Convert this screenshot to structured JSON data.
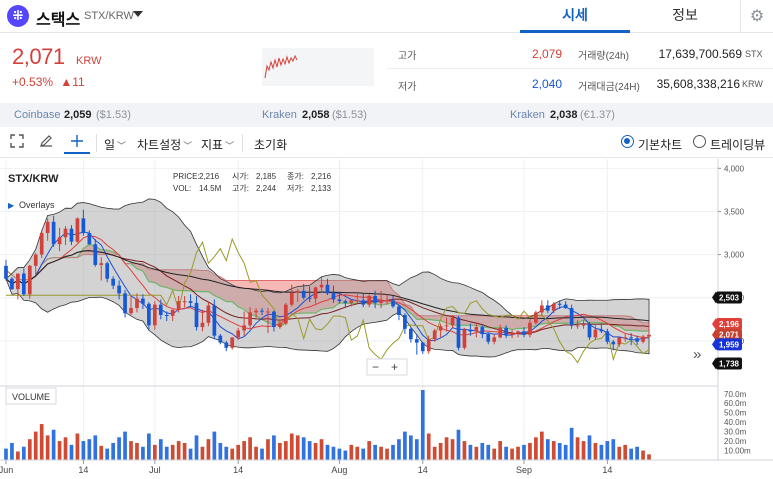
{
  "header": {
    "coin_logo": "⁜",
    "coin_name": "스택스",
    "pair": "STX/KRW",
    "dropdown_icon": "caret-down-icon",
    "tabs": [
      "시세",
      "정보"
    ],
    "settings_icon": "gear-icon"
  },
  "price": {
    "current": "2,071",
    "unit": "KRW",
    "change_pct": "+0.53%",
    "change_abs": "▲11"
  },
  "stats": {
    "high_label": "고가",
    "high_value": "2,079",
    "low_label": "저가",
    "low_value": "2,040",
    "volume_label": "거래량(24h)",
    "volume_value": "17,639,700.569",
    "volume_unit": "STX",
    "amount_label": "거래대금(24H)",
    "amount_value": "35,608,338,216",
    "amount_unit": "KRW"
  },
  "exchanges": [
    {
      "name": "Coinbase",
      "price": "2,059",
      "sub": "($1.53)"
    },
    {
      "name": "Kraken",
      "price": "2,058",
      "sub": "($1.53)"
    },
    {
      "name": "Kraken",
      "price": "2,038",
      "sub": "(€1.37)"
    }
  ],
  "toolbar": {
    "expand_icon": "expand-icon",
    "draw_icon": "pencil-icon",
    "crosshair_icon": "crosshair-icon",
    "period": "일",
    "chart_settings": "차트설정",
    "indicators": "지표",
    "reset": "초기화",
    "basic_chart": "기본차트",
    "tradingview": "트레이딩뷰",
    "dropdown_caret": "﹀"
  },
  "colors": {
    "up": "#d2413a",
    "down": "#1559d6",
    "accent": "#1261c4",
    "cloud_bear": "#f4a2a0",
    "bollinger_fill": "#9e9e9e"
  },
  "legend": {
    "symbol": "STX/KRW",
    "overlays": "Overlays",
    "price_label": "PRICE:",
    "price_value": "2,216",
    "vol_label": "VOL:",
    "vol_value": "14.5M",
    "open_label": "시가:",
    "open_value": "2,185",
    "high_label": "고가:",
    "high_value": "2,244",
    "close_label": "종가:",
    "close_value": "2,216",
    "low_label": "저가:",
    "low_value": "2,133",
    "volume_title": "VOLUME",
    "zoom_out": "−",
    "zoom_in": "+",
    "scroll_right": "»"
  },
  "chart_data": {
    "type": "candlestick",
    "x_ticks": [
      "Jun",
      "14",
      "Jul",
      "14",
      "Aug",
      "14",
      "Sep",
      "14"
    ],
    "price_axis_ticks": [
      "4,000",
      "3,500",
      "3,000",
      "2,500",
      "2,000"
    ],
    "volume_axis_ticks": [
      "70.0m",
      "60.0m",
      "50.0m",
      "40.0m",
      "30.0m",
      "20.0m",
      "10.00m"
    ],
    "ylim": [
      1500,
      4050
    ],
    "price_badges": [
      {
        "label": "2,503",
        "value": 2503,
        "color": "#111111"
      },
      {
        "label": "2,196",
        "value": 2196,
        "color": "#e0403a"
      },
      {
        "label": "2,071",
        "value": 2071,
        "color": "#c5402e"
      },
      {
        "label": "1,959",
        "value": 1959,
        "color": "#1733d6"
      },
      {
        "label": "1,738",
        "value": 1738,
        "color": "#111111"
      }
    ],
    "candles": {
      "opens": [
        2870,
        2720,
        2600,
        2780,
        2540,
        2870,
        3000,
        3250,
        3380,
        3120,
        3200,
        3300,
        3150,
        3420,
        3250,
        3120,
        2880,
        2900,
        2720,
        2640,
        2550,
        2320,
        2380,
        2490,
        2430,
        2180,
        2420,
        2300,
        2290,
        2360,
        2460,
        2460,
        2440,
        2160,
        2210,
        2410,
        2060,
        1980,
        1920,
        2040,
        2120,
        2180,
        2330,
        2350,
        2340,
        2340,
        2160,
        2200,
        2420,
        2560,
        2580,
        2500,
        2490,
        2620,
        2650,
        2550,
        2480,
        2460,
        2440,
        2470,
        2470,
        2420,
        2520,
        2440,
        2470,
        2470,
        2400,
        2300,
        2140,
        2020,
        1980,
        1880,
        2020,
        2120,
        2170,
        2180,
        2270,
        1920,
        2130,
        2110,
        2160,
        2080,
        1990,
        2040,
        2150,
        2070,
        2090,
        2110,
        2070,
        2210,
        2330,
        2410,
        2350,
        2430,
        2420,
        2380,
        2180,
        2180,
        2190,
        2040,
        2130,
        2110,
        1990,
        1960,
        2040,
        2040,
        2030,
        1990,
        2050
      ],
      "highs": [
        2940,
        2740,
        2620,
        2840,
        2880,
        3020,
        3290,
        3420,
        3450,
        3310,
        3330,
        3340,
        3430,
        3520,
        3280,
        3180,
        2970,
        2920,
        2750,
        2700,
        2590,
        2520,
        2550,
        2540,
        2450,
        2460,
        2480,
        2340,
        2360,
        2520,
        2520,
        2540,
        2520,
        2360,
        2450,
        2480,
        2080,
        2000,
        1980,
        2150,
        2340,
        2390,
        2380,
        2380,
        2380,
        2350,
        2250,
        2440,
        2650,
        2600,
        2660,
        2630,
        2630,
        2740,
        2720,
        2640,
        2570,
        2480,
        2480,
        2560,
        2550,
        2540,
        2580,
        2580,
        2540,
        2520,
        2410,
        2320,
        2160,
        2080,
        1990,
        2060,
        2140,
        2200,
        2270,
        2300,
        2290,
        2150,
        2200,
        2200,
        2180,
        2090,
        2070,
        2190,
        2180,
        2130,
        2120,
        2160,
        2260,
        2350,
        2470,
        2470,
        2450,
        2470,
        2460,
        2420,
        2240,
        2240,
        2220,
        2180,
        2200,
        2140,
        2010,
        2050,
        2080,
        2090,
        2060,
        2070,
        2210
      ],
      "lows": [
        2700,
        2590,
        2480,
        2520,
        2490,
        2760,
        2960,
        3160,
        3090,
        3040,
        3110,
        3110,
        3140,
        3220,
        3110,
        2860,
        2700,
        2680,
        2600,
        2480,
        2270,
        2300,
        2330,
        2370,
        2130,
        2130,
        2250,
        2230,
        2230,
        2330,
        2390,
        2390,
        2120,
        2110,
        2170,
        2020,
        1960,
        1880,
        1900,
        2010,
        2060,
        2150,
        2260,
        2300,
        2090,
        2110,
        2140,
        2180,
        2400,
        2450,
        2480,
        2450,
        2430,
        2580,
        2530,
        2440,
        2430,
        2380,
        2400,
        2430,
        2390,
        2390,
        2380,
        2380,
        2420,
        2380,
        2240,
        2080,
        1980,
        1840,
        1850,
        1850,
        1990,
        2040,
        2110,
        2150,
        1890,
        1900,
        2060,
        2040,
        2030,
        1960,
        1960,
        2030,
        2030,
        2030,
        2040,
        2040,
        2040,
        2190,
        2290,
        2320,
        2320,
        2370,
        2370,
        2140,
        2140,
        2140,
        2010,
        2010,
        2090,
        1960,
        1890,
        1930,
        1990,
        1950,
        1950,
        1970,
        2040
      ],
      "closes": [
        2720,
        2600,
        2780,
        2540,
        2870,
        3000,
        3250,
        3380,
        3120,
        3200,
        3300,
        3150,
        3420,
        3250,
        3120,
        2880,
        2900,
        2720,
        2640,
        2550,
        2320,
        2380,
        2490,
        2430,
        2180,
        2420,
        2300,
        2290,
        2360,
        2460,
        2460,
        2440,
        2160,
        2210,
        2410,
        2060,
        1980,
        1920,
        2040,
        2120,
        2180,
        2330,
        2350,
        2340,
        2340,
        2160,
        2200,
        2420,
        2560,
        2580,
        2500,
        2490,
        2620,
        2650,
        2550,
        2480,
        2460,
        2440,
        2470,
        2470,
        2420,
        2520,
        2440,
        2470,
        2470,
        2400,
        2300,
        2140,
        2020,
        1980,
        1880,
        2020,
        2120,
        2170,
        2180,
        2270,
        1920,
        2130,
        2110,
        2160,
        2080,
        1990,
        2040,
        2150,
        2070,
        2090,
        2110,
        2070,
        2210,
        2330,
        2410,
        2350,
        2430,
        2420,
        2380,
        2180,
        2180,
        2190,
        2040,
        2130,
        2110,
        1990,
        1960,
        2040,
        2040,
        2030,
        1990,
        2050,
        2071
      ],
      "volumes": [
        12,
        18,
        9,
        14,
        22,
        30,
        38,
        26,
        32,
        20,
        24,
        16,
        28,
        20,
        22,
        26,
        15,
        12,
        18,
        24,
        30,
        20,
        18,
        14,
        28,
        16,
        22,
        14,
        16,
        20,
        18,
        12,
        26,
        14,
        22,
        30,
        18,
        14,
        12,
        16,
        20,
        24,
        14,
        12,
        22,
        26,
        18,
        20,
        28,
        26,
        24,
        20,
        18,
        22,
        16,
        14,
        12,
        10,
        16,
        14,
        12,
        20,
        16,
        14,
        12,
        16,
        22,
        30,
        26,
        22,
        74,
        28,
        14,
        18,
        24,
        22,
        32,
        20,
        16,
        14,
        18,
        16,
        12,
        20,
        14,
        12,
        14,
        16,
        18,
        24,
        30,
        22,
        20,
        18,
        16,
        34,
        24,
        20,
        26,
        18,
        16,
        20,
        22,
        14,
        16,
        12,
        14,
        10,
        6
      ],
      "start_date": "2024-05-25"
    },
    "overlays": [
      "Ichimoku cloud",
      "Bollinger Bands",
      "Moving averages"
    ]
  }
}
